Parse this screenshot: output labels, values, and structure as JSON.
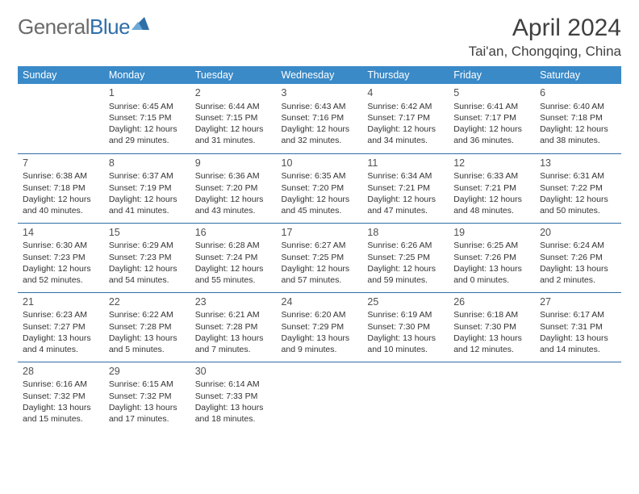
{
  "logo": {
    "text1": "General",
    "text2": "Blue"
  },
  "title": "April 2024",
  "location": "Tai'an, Chongqing, China",
  "colors": {
    "header_bg": "#3a8ac8",
    "header_text": "#ffffff",
    "border": "#2f6fa8",
    "text": "#333333",
    "logo_gray": "#6b6b6b",
    "logo_blue": "#2f6fa8",
    "page_bg": "#ffffff"
  },
  "weekdays": [
    "Sunday",
    "Monday",
    "Tuesday",
    "Wednesday",
    "Thursday",
    "Friday",
    "Saturday"
  ],
  "weeks": [
    [
      null,
      {
        "n": "1",
        "sr": "6:45 AM",
        "ss": "7:15 PM",
        "dl": "12 hours and 29 minutes."
      },
      {
        "n": "2",
        "sr": "6:44 AM",
        "ss": "7:15 PM",
        "dl": "12 hours and 31 minutes."
      },
      {
        "n": "3",
        "sr": "6:43 AM",
        "ss": "7:16 PM",
        "dl": "12 hours and 32 minutes."
      },
      {
        "n": "4",
        "sr": "6:42 AM",
        "ss": "7:17 PM",
        "dl": "12 hours and 34 minutes."
      },
      {
        "n": "5",
        "sr": "6:41 AM",
        "ss": "7:17 PM",
        "dl": "12 hours and 36 minutes."
      },
      {
        "n": "6",
        "sr": "6:40 AM",
        "ss": "7:18 PM",
        "dl": "12 hours and 38 minutes."
      }
    ],
    [
      {
        "n": "7",
        "sr": "6:38 AM",
        "ss": "7:18 PM",
        "dl": "12 hours and 40 minutes."
      },
      {
        "n": "8",
        "sr": "6:37 AM",
        "ss": "7:19 PM",
        "dl": "12 hours and 41 minutes."
      },
      {
        "n": "9",
        "sr": "6:36 AM",
        "ss": "7:20 PM",
        "dl": "12 hours and 43 minutes."
      },
      {
        "n": "10",
        "sr": "6:35 AM",
        "ss": "7:20 PM",
        "dl": "12 hours and 45 minutes."
      },
      {
        "n": "11",
        "sr": "6:34 AM",
        "ss": "7:21 PM",
        "dl": "12 hours and 47 minutes."
      },
      {
        "n": "12",
        "sr": "6:33 AM",
        "ss": "7:21 PM",
        "dl": "12 hours and 48 minutes."
      },
      {
        "n": "13",
        "sr": "6:31 AM",
        "ss": "7:22 PM",
        "dl": "12 hours and 50 minutes."
      }
    ],
    [
      {
        "n": "14",
        "sr": "6:30 AM",
        "ss": "7:23 PM",
        "dl": "12 hours and 52 minutes."
      },
      {
        "n": "15",
        "sr": "6:29 AM",
        "ss": "7:23 PM",
        "dl": "12 hours and 54 minutes."
      },
      {
        "n": "16",
        "sr": "6:28 AM",
        "ss": "7:24 PM",
        "dl": "12 hours and 55 minutes."
      },
      {
        "n": "17",
        "sr": "6:27 AM",
        "ss": "7:25 PM",
        "dl": "12 hours and 57 minutes."
      },
      {
        "n": "18",
        "sr": "6:26 AM",
        "ss": "7:25 PM",
        "dl": "12 hours and 59 minutes."
      },
      {
        "n": "19",
        "sr": "6:25 AM",
        "ss": "7:26 PM",
        "dl": "13 hours and 0 minutes."
      },
      {
        "n": "20",
        "sr": "6:24 AM",
        "ss": "7:26 PM",
        "dl": "13 hours and 2 minutes."
      }
    ],
    [
      {
        "n": "21",
        "sr": "6:23 AM",
        "ss": "7:27 PM",
        "dl": "13 hours and 4 minutes."
      },
      {
        "n": "22",
        "sr": "6:22 AM",
        "ss": "7:28 PM",
        "dl": "13 hours and 5 minutes."
      },
      {
        "n": "23",
        "sr": "6:21 AM",
        "ss": "7:28 PM",
        "dl": "13 hours and 7 minutes."
      },
      {
        "n": "24",
        "sr": "6:20 AM",
        "ss": "7:29 PM",
        "dl": "13 hours and 9 minutes."
      },
      {
        "n": "25",
        "sr": "6:19 AM",
        "ss": "7:30 PM",
        "dl": "13 hours and 10 minutes."
      },
      {
        "n": "26",
        "sr": "6:18 AM",
        "ss": "7:30 PM",
        "dl": "13 hours and 12 minutes."
      },
      {
        "n": "27",
        "sr": "6:17 AM",
        "ss": "7:31 PM",
        "dl": "13 hours and 14 minutes."
      }
    ],
    [
      {
        "n": "28",
        "sr": "6:16 AM",
        "ss": "7:32 PM",
        "dl": "13 hours and 15 minutes."
      },
      {
        "n": "29",
        "sr": "6:15 AM",
        "ss": "7:32 PM",
        "dl": "13 hours and 17 minutes."
      },
      {
        "n": "30",
        "sr": "6:14 AM",
        "ss": "7:33 PM",
        "dl": "13 hours and 18 minutes."
      },
      null,
      null,
      null,
      null
    ]
  ],
  "labels": {
    "sunrise": "Sunrise:",
    "sunset": "Sunset:",
    "daylight": "Daylight:"
  }
}
